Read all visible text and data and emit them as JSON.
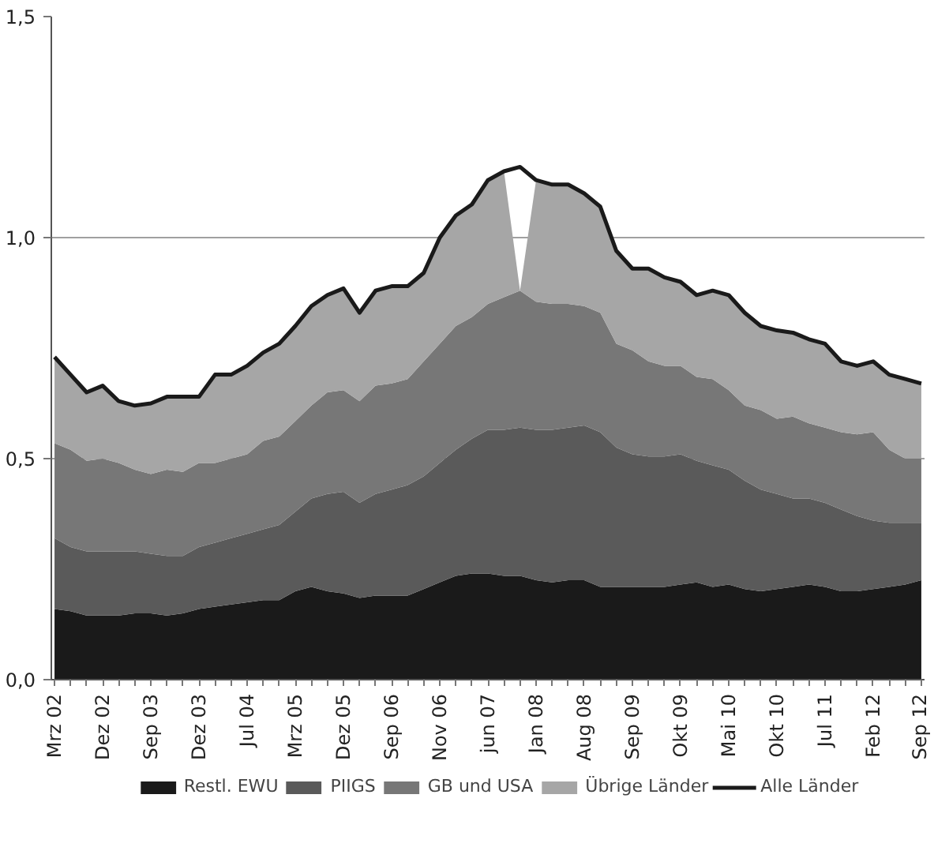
{
  "chart_data": {
    "type": "area",
    "stacked": true,
    "categories": [
      "Mrz 02",
      null,
      null,
      "Dez 02",
      null,
      null,
      "Sep 03",
      null,
      null,
      "Dez 03",
      null,
      null,
      "Jul 04",
      null,
      null,
      "Mrz 05",
      null,
      null,
      "Dez 05",
      null,
      null,
      "Sep 06",
      null,
      null,
      "Nov 06",
      null,
      null,
      "jun 07",
      null,
      null,
      "Jan 08",
      null,
      null,
      "Aug 08",
      null,
      null,
      "Sep 09",
      null,
      null,
      "Okt 09",
      null,
      null,
      "Mai 10",
      null,
      null,
      "Okt 10",
      null,
      null,
      "Jul 11",
      null,
      null,
      "Feb 12",
      null,
      null,
      "Sep 12"
    ],
    "ylim": [
      0,
      1.5
    ],
    "yticks": [
      {
        "value": 0,
        "label": "0,0"
      },
      {
        "value": 0.5,
        "label": "0,5"
      },
      {
        "value": 1,
        "label": "1,0"
      },
      {
        "value": 1.5,
        "label": "1,5"
      }
    ],
    "grid": "y",
    "legend": "bottom",
    "series": [
      {
        "name": "Restl. EWU",
        "color": "#1a1a1a",
        "values": [
          0.16,
          0.155,
          0.145,
          0.145,
          0.145,
          0.15,
          0.15,
          0.145,
          0.15,
          0.16,
          0.165,
          0.17,
          0.175,
          0.18,
          0.18,
          0.2,
          0.21,
          0.2,
          0.195,
          0.185,
          0.19,
          0.19,
          0.19,
          0.205,
          0.22,
          0.235,
          0.24,
          0.24,
          0.235,
          0.235,
          0.225,
          0.22,
          0.225,
          0.225,
          0.21,
          0.21,
          0.21,
          0.21,
          0.21,
          0.215,
          0.22,
          0.21,
          0.215,
          0.205,
          0.2,
          0.205,
          0.21,
          0.215,
          0.21,
          0.2,
          0.2,
          0.205,
          0.21,
          0.215,
          0.225
        ]
      },
      {
        "name": "PIIGS",
        "color": "#5a5a5a",
        "values": [
          0.16,
          0.145,
          0.145,
          0.145,
          0.145,
          0.14,
          0.135,
          0.135,
          0.13,
          0.14,
          0.145,
          0.15,
          0.155,
          0.16,
          0.17,
          0.18,
          0.2,
          0.22,
          0.23,
          0.215,
          0.23,
          0.24,
          0.25,
          0.255,
          0.27,
          0.285,
          0.305,
          0.325,
          0.33,
          0.335,
          0.34,
          0.345,
          0.345,
          0.35,
          0.35,
          0.315,
          0.3,
          0.295,
          0.295,
          0.295,
          0.275,
          0.275,
          0.26,
          0.245,
          0.23,
          0.215,
          0.2,
          0.195,
          0.19,
          0.185,
          0.17,
          0.155,
          0.145,
          0.14,
          0.13
        ]
      },
      {
        "name": "GB und USA",
        "color": "#777777",
        "values": [
          0.215,
          0.22,
          0.205,
          0.21,
          0.2,
          0.185,
          0.18,
          0.195,
          0.19,
          0.19,
          0.18,
          0.18,
          0.18,
          0.2,
          0.2,
          0.205,
          0.21,
          0.23,
          0.23,
          0.23,
          0.245,
          0.24,
          0.24,
          0.26,
          0.27,
          0.28,
          0.275,
          0.285,
          0.3,
          0.31,
          0.29,
          0.285,
          0.28,
          0.27,
          0.27,
          0.235,
          0.235,
          0.215,
          0.205,
          0.2,
          0.19,
          0.195,
          0.18,
          0.17,
          0.18,
          0.17,
          0.185,
          0.17,
          0.17,
          0.175,
          0.185,
          0.2,
          0.165,
          0.145,
          0.145
        ]
      },
      {
        "name": "Übrige Länder",
        "color": "#a6a6a6",
        "values": [
          0.195,
          0.17,
          0.155,
          0.165,
          0.14,
          0.145,
          0.16,
          0.165,
          0.17,
          0.15,
          0.2,
          0.19,
          0.2,
          0.2,
          0.21,
          0.215,
          0.225,
          0.22,
          0.23,
          0.2,
          0.215,
          0.22,
          0.21,
          0.2,
          0.24,
          0.25,
          0.255,
          0.28,
          0.285,
          0,
          0.275,
          0.27,
          0.27,
          0.255,
          0.24,
          0.21,
          0.185,
          0.21,
          0.2,
          0.19,
          0.185,
          0.2,
          0.215,
          0.21,
          0.19,
          0.2,
          0.19,
          0.19,
          0.19,
          0.16,
          0.155,
          0.16,
          0.17,
          0.18,
          0.17
        ]
      },
      {
        "name": "Alle Länder",
        "type": "line",
        "color": "#1a1a1a",
        "values": [
          0.73,
          0.69,
          0.65,
          0.665,
          0.63,
          0.62,
          0.625,
          0.64,
          0.64,
          0.64,
          0.69,
          0.69,
          0.71,
          0.74,
          0.76,
          0.8,
          0.845,
          0.87,
          0.885,
          0.83,
          0.88,
          0.89,
          0.89,
          0.92,
          1.0,
          1.05,
          1.075,
          1.13,
          1.15,
          1.16,
          1.13,
          1.12,
          1.12,
          1.1,
          1.07,
          0.97,
          0.93,
          0.93,
          0.91,
          0.9,
          0.87,
          0.88,
          0.87,
          0.83,
          0.8,
          0.79,
          0.785,
          0.77,
          0.76,
          0.72,
          0.71,
          0.72,
          0.69,
          0.68,
          0.67
        ]
      }
    ]
  }
}
